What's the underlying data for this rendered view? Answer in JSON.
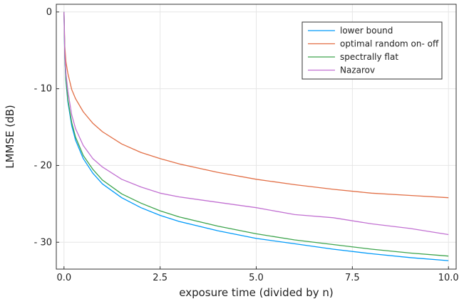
{
  "chart_data": {
    "type": "line",
    "title": "",
    "xlabel": "exposure time (divided by n)",
    "ylabel": "LMMSE (dB)",
    "xlim": [
      -0.2,
      10.2
    ],
    "ylim": [
      -33.5,
      1
    ],
    "xticks": [
      0.0,
      2.5,
      5.0,
      7.5,
      10.0
    ],
    "xtick_labels": [
      "0.0",
      "2.5",
      "5.0",
      "7.5",
      "10.0"
    ],
    "yticks": [
      0,
      -10,
      -20,
      -30
    ],
    "ytick_labels": [
      "0",
      "- 10",
      "- 20",
      "- 30"
    ],
    "grid": true,
    "legend_position": "top-right",
    "series": [
      {
        "name": "lower bound",
        "color": "#009af9",
        "x": [
          0,
          0.02,
          0.05,
          0.1,
          0.2,
          0.3,
          0.5,
          0.75,
          1.0,
          1.5,
          2.0,
          2.5,
          3.0,
          4.0,
          5.0,
          6.0,
          7.0,
          8.0,
          9.0,
          10.0
        ],
        "y": [
          0,
          -6.0,
          -9.0,
          -11.7,
          -14.8,
          -16.7,
          -19.1,
          -21.0,
          -22.4,
          -24.2,
          -25.5,
          -26.5,
          -27.3,
          -28.5,
          -29.5,
          -30.2,
          -30.9,
          -31.5,
          -32.0,
          -32.4
        ]
      },
      {
        "name": "optimal random on- off",
        "color": "#e26f46",
        "x": [
          0,
          0.02,
          0.05,
          0.1,
          0.2,
          0.3,
          0.5,
          0.75,
          1.0,
          1.5,
          2.0,
          2.5,
          3.0,
          4.0,
          5.0,
          6.0,
          7.0,
          8.0,
          9.0,
          10.0
        ],
        "y": [
          0,
          -4.5,
          -6.5,
          -8.0,
          -10.1,
          -11.3,
          -13.0,
          -14.5,
          -15.6,
          -17.2,
          -18.3,
          -19.1,
          -19.8,
          -20.9,
          -21.8,
          -22.5,
          -23.1,
          -23.6,
          -23.9,
          -24.2
        ]
      },
      {
        "name": "spectrally flat",
        "color": "#3da44d",
        "x": [
          0,
          0.02,
          0.05,
          0.1,
          0.2,
          0.3,
          0.5,
          0.75,
          1.0,
          1.5,
          2.0,
          2.5,
          3.0,
          4.0,
          5.0,
          6.0,
          7.0,
          8.0,
          9.0,
          10.0
        ],
        "y": [
          0,
          -5.9,
          -8.8,
          -11.4,
          -14.4,
          -16.3,
          -18.7,
          -20.5,
          -21.9,
          -23.7,
          -24.9,
          -25.9,
          -26.7,
          -27.9,
          -28.9,
          -29.7,
          -30.3,
          -30.9,
          -31.4,
          -31.8
        ]
      },
      {
        "name": "Nazarov",
        "color": "#c271d2",
        "x": [
          0,
          0.02,
          0.05,
          0.1,
          0.2,
          0.3,
          0.5,
          0.75,
          1.0,
          1.5,
          2.0,
          2.5,
          3.0,
          4.0,
          5.0,
          6.0,
          7.0,
          8.0,
          9.0,
          10.0
        ],
        "y": [
          0,
          -5.5,
          -8.0,
          -10.3,
          -13.4,
          -15.2,
          -17.4,
          -19.1,
          -20.2,
          -21.8,
          -22.8,
          -23.6,
          -24.1,
          -24.8,
          -25.5,
          -26.4,
          -26.8,
          -27.6,
          -28.2,
          -29.0
        ]
      }
    ]
  }
}
